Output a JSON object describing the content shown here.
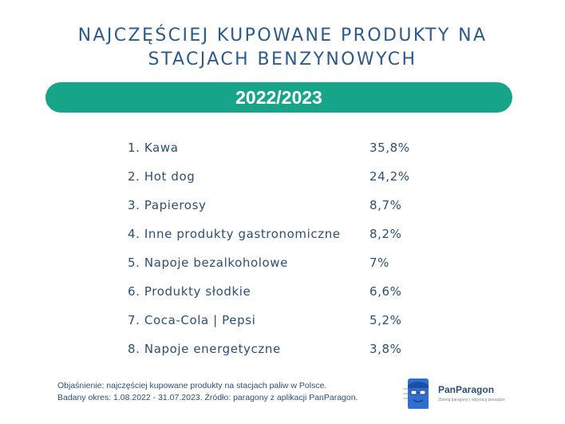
{
  "title": {
    "line1": "NAJCZĘŚCIEJ KUPOWANE PRODUKTY NA",
    "line2": "STACJACH BENZYNOWYCH"
  },
  "period_banner": "2022/2023",
  "chart_data": {
    "type": "table",
    "rows": [
      {
        "label": "1. Kawa",
        "value": "35,8%"
      },
      {
        "label": "2. Hot dog",
        "value": "24,2%"
      },
      {
        "label": "3. Papierosy",
        "value": "8,7%"
      },
      {
        "label": "4. Inne produkty gastronomiczne",
        "value": "8,2%"
      },
      {
        "label": "5. Napoje bezalkoholowe",
        "value": "7%"
      },
      {
        "label": "6. Produkty słodkie",
        "value": "6,6%"
      },
      {
        "label": "7. Coca-Cola | Pepsi",
        "value": "5,2%"
      },
      {
        "label": "8. Napoje energetyczne",
        "value": "3,8%"
      }
    ]
  },
  "footnote": {
    "line1": "Objaśnienie: najczęściej kupowane produkty na stacjach paliw w Polsce.",
    "line2": "Badany okres: 1.08.2022 - 31.07.2023. Źródło: paragony z aplikacji PanParagon."
  },
  "brand": {
    "name": "PanParagon",
    "tagline": "Zbieraj paragony | odzyskuj pieniądze",
    "icon": "panparagon-logo-icon",
    "colors": {
      "accent": "#17a58a",
      "text": "#2b4f77",
      "logo": "#2f6fd1"
    }
  }
}
